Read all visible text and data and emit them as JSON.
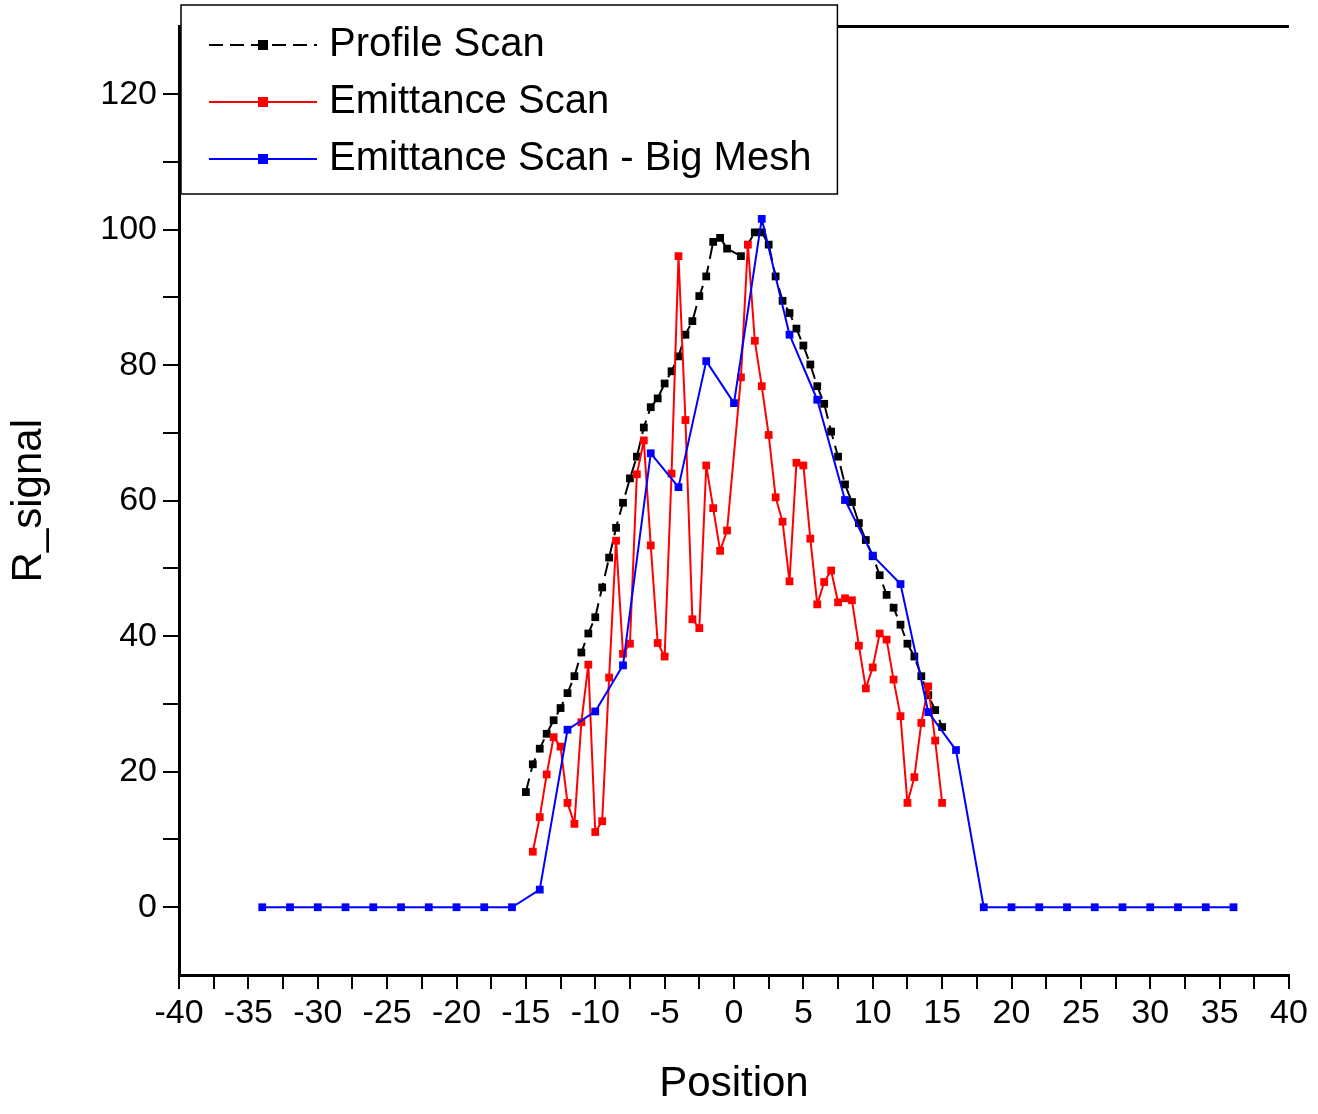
{
  "chart_data": {
    "type": "line",
    "xlabel": "Position",
    "ylabel": "R_signal",
    "xlim": [
      -40,
      40
    ],
    "xticks": [
      -40,
      {
        "value": -37.5,
        "label": null
      },
      -35,
      {
        "value": -32.5,
        "label": null
      },
      -30,
      {
        "value": -27.5,
        "label": null
      },
      -25,
      {
        "value": -22.5,
        "label": null
      },
      -20,
      {
        "value": -17.5,
        "label": null
      },
      -15,
      {
        "value": -12.5,
        "label": null
      },
      -10,
      {
        "value": -7.5,
        "label": null
      },
      -5,
      {
        "value": -2.5,
        "label": null
      },
      0,
      {
        "value": 2.5,
        "label": null
      },
      5,
      {
        "value": 7.5,
        "label": null
      },
      10,
      {
        "value": 12.5,
        "label": null
      },
      15,
      {
        "value": 17.5,
        "label": null
      },
      20,
      {
        "value": 22.5,
        "label": null
      },
      25,
      {
        "value": 27.5,
        "label": null
      },
      30,
      {
        "value": 32.5,
        "label": null
      },
      35,
      {
        "value": 37.5,
        "label": null
      },
      40
    ],
    "ylim": [
      -10,
      130
    ],
    "yticks": [
      0,
      {
        "value": 10,
        "label": null
      },
      20,
      {
        "value": 30,
        "label": null
      },
      40,
      {
        "value": 50,
        "label": null
      },
      60,
      {
        "value": 70,
        "label": null
      },
      80,
      {
        "value": 90,
        "label": null
      },
      100,
      {
        "value": 110,
        "label": null
      },
      120
    ],
    "grid": false,
    "legend": "top left",
    "marker": "square",
    "series": [
      {
        "name": "Profile Scan",
        "color": "#000000",
        "line_style": "dashed",
        "x": [
          -15,
          -14.5,
          -14,
          -13.5,
          -13,
          -12.5,
          -12,
          -11.5,
          -11,
          -10.5,
          -10,
          -9.5,
          -9,
          -8.5,
          -8,
          -7.5,
          -7,
          -6.5,
          -6,
          -5.5,
          -5,
          -4.5,
          -4,
          -3.5,
          -3,
          -2.5,
          -2,
          -1.5,
          -1,
          -0.5,
          0.5,
          1.5,
          2,
          2.5,
          3,
          3.5,
          4,
          4.5,
          5,
          5.5,
          6,
          6.5,
          7,
          7.5,
          8,
          8.5,
          9,
          9.5,
          10,
          10.5,
          11,
          11.5,
          12,
          12.5,
          13,
          13.5,
          14,
          14.5,
          15
        ],
        "values": [
          17.0,
          21.1,
          23.4,
          25.6,
          27.6,
          29.4,
          31.6,
          34.1,
          37.6,
          40.4,
          42.8,
          47.2,
          51.6,
          56.0,
          59.7,
          63.3,
          66.5,
          70.8,
          73.8,
          75.1,
          77.3,
          79.1,
          81.3,
          84.5,
          86.5,
          90.2,
          93.1,
          98.2,
          98.8,
          97.2,
          96.1,
          99.6,
          99.6,
          97.8,
          93.1,
          89.5,
          87.7,
          85.4,
          82.9,
          80.1,
          76.9,
          74.3,
          70.2,
          66.5,
          62.4,
          59.8,
          56.7,
          54.2,
          51.8,
          49.0,
          46.1,
          44.2,
          41.7,
          38.9,
          37.0,
          34.1,
          31.3,
          29.1,
          26.6
        ]
      },
      {
        "name": "Emittance Scan",
        "color": "#ff0000",
        "line_style": "solid",
        "x": [
          -14.5,
          -14,
          -13.5,
          -13,
          -12.5,
          -12,
          -11.5,
          -11,
          -10.5,
          -10,
          -9.5,
          -9,
          -8.5,
          -8,
          -7.5,
          -7,
          -6.5,
          -6,
          -5.5,
          -5,
          -4.5,
          -4,
          -3.5,
          -3,
          -2.5,
          -2,
          -1.5,
          -1,
          -0.5,
          0.5,
          1,
          1.5,
          2,
          2.5,
          3,
          3.5,
          4,
          4.5,
          5,
          5.5,
          6,
          6.5,
          7,
          7.5,
          8,
          8.5,
          9,
          9.5,
          10,
          10.5,
          11,
          11.5,
          12,
          12.5,
          13,
          13.5,
          14,
          14.5,
          15
        ],
        "values": [
          8.2,
          13.3,
          19.6,
          25.1,
          23.7,
          15.4,
          12.3,
          27.3,
          35.8,
          11.1,
          12.7,
          33.9,
          54.1,
          37.4,
          38.9,
          63.9,
          68.9,
          53.4,
          39.0,
          37.0,
          64.0,
          96.1,
          71.9,
          42.5,
          41.2,
          65.2,
          58.9,
          52.6,
          55.6,
          78.2,
          97.8,
          83.6,
          76.9,
          69.7,
          60.5,
          56.9,
          48.1,
          65.6,
          65.2,
          54.4,
          44.7,
          48.0,
          49.7,
          45.0,
          45.6,
          45.3,
          38.6,
          32.3,
          35.4,
          40.4,
          39.5,
          33.6,
          28.2,
          15.4,
          19.2,
          27.2,
          32.6,
          24.6,
          15.4
        ]
      },
      {
        "name": "Emittance Scan - Big Mesh",
        "color": "#0000ff",
        "line_style": "solid",
        "x": [
          -34,
          -32,
          -30,
          -28,
          -26,
          -24,
          -22,
          -20,
          -18,
          -16,
          -14,
          -12,
          -10,
          -8,
          -6,
          -4,
          -2,
          0,
          2,
          4,
          6,
          8,
          10,
          12,
          14,
          16,
          18,
          20,
          22,
          24,
          26,
          28,
          30,
          32,
          34,
          36
        ],
        "values": [
          0,
          0,
          0,
          0,
          0,
          0,
          0,
          0,
          0,
          0,
          2.6,
          26.2,
          28.9,
          35.7,
          67.0,
          62.0,
          80.6,
          74.4,
          101.6,
          84.5,
          74.9,
          60.1,
          51.9,
          47.7,
          28.8,
          23.2,
          0,
          0,
          0,
          0,
          0,
          0,
          0,
          0,
          0,
          0
        ]
      }
    ]
  }
}
